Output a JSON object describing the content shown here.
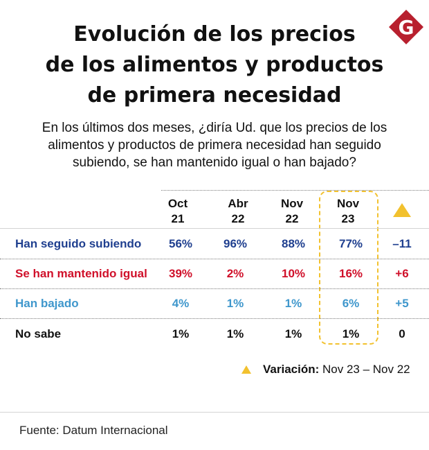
{
  "title_lines": [
    "Evolución de los precios",
    "de los alimentos y productos",
    "de primera necesidad"
  ],
  "logo_letter": "G",
  "subtitle_lines": [
    "En los últimos dos meses, ¿diría Ud. que los precios de los",
    "alimentos y productos de primera necesidad han seguido",
    "subiendo, se han mantenido igual o han bajado?"
  ],
  "colors": {
    "accent": "#f2c12e",
    "logo_red": "#b8202e",
    "blue": "#1f3f8f",
    "red": "#d0102a",
    "lightblue": "#3f97cc",
    "black": "#111111"
  },
  "chart_data": {
    "type": "table",
    "columns": [
      {
        "line1": "Oct",
        "line2": "21"
      },
      {
        "line1": "Abr",
        "line2": "22"
      },
      {
        "line1": "Nov",
        "line2": "22"
      },
      {
        "line1": "Nov",
        "line2": "23"
      }
    ],
    "variation_header_icon": "triangle-up-icon",
    "highlighted_column": "Nov 23",
    "rows": [
      {
        "label": "Han seguido subiendo",
        "color": "#1f3f8f",
        "values": [
          "56%",
          "96%",
          "88%",
          "77%"
        ],
        "variation": "–11"
      },
      {
        "label": "Se han mantenido igual",
        "color": "#d0102a",
        "values": [
          "39%",
          "2%",
          "10%",
          "16%"
        ],
        "variation": "+6"
      },
      {
        "label": "Han bajado",
        "color": "#3f97cc",
        "values": [
          "4%",
          "1%",
          "1%",
          "6%"
        ],
        "variation": "+5"
      },
      {
        "label": "No sabe",
        "color": "#111111",
        "values": [
          "1%",
          "1%",
          "1%",
          "1%"
        ],
        "variation": "0"
      }
    ],
    "legend": {
      "label": "Variación:",
      "text": "Nov 23 – Nov 22"
    }
  },
  "source": "Fuente: Datum Internacional"
}
